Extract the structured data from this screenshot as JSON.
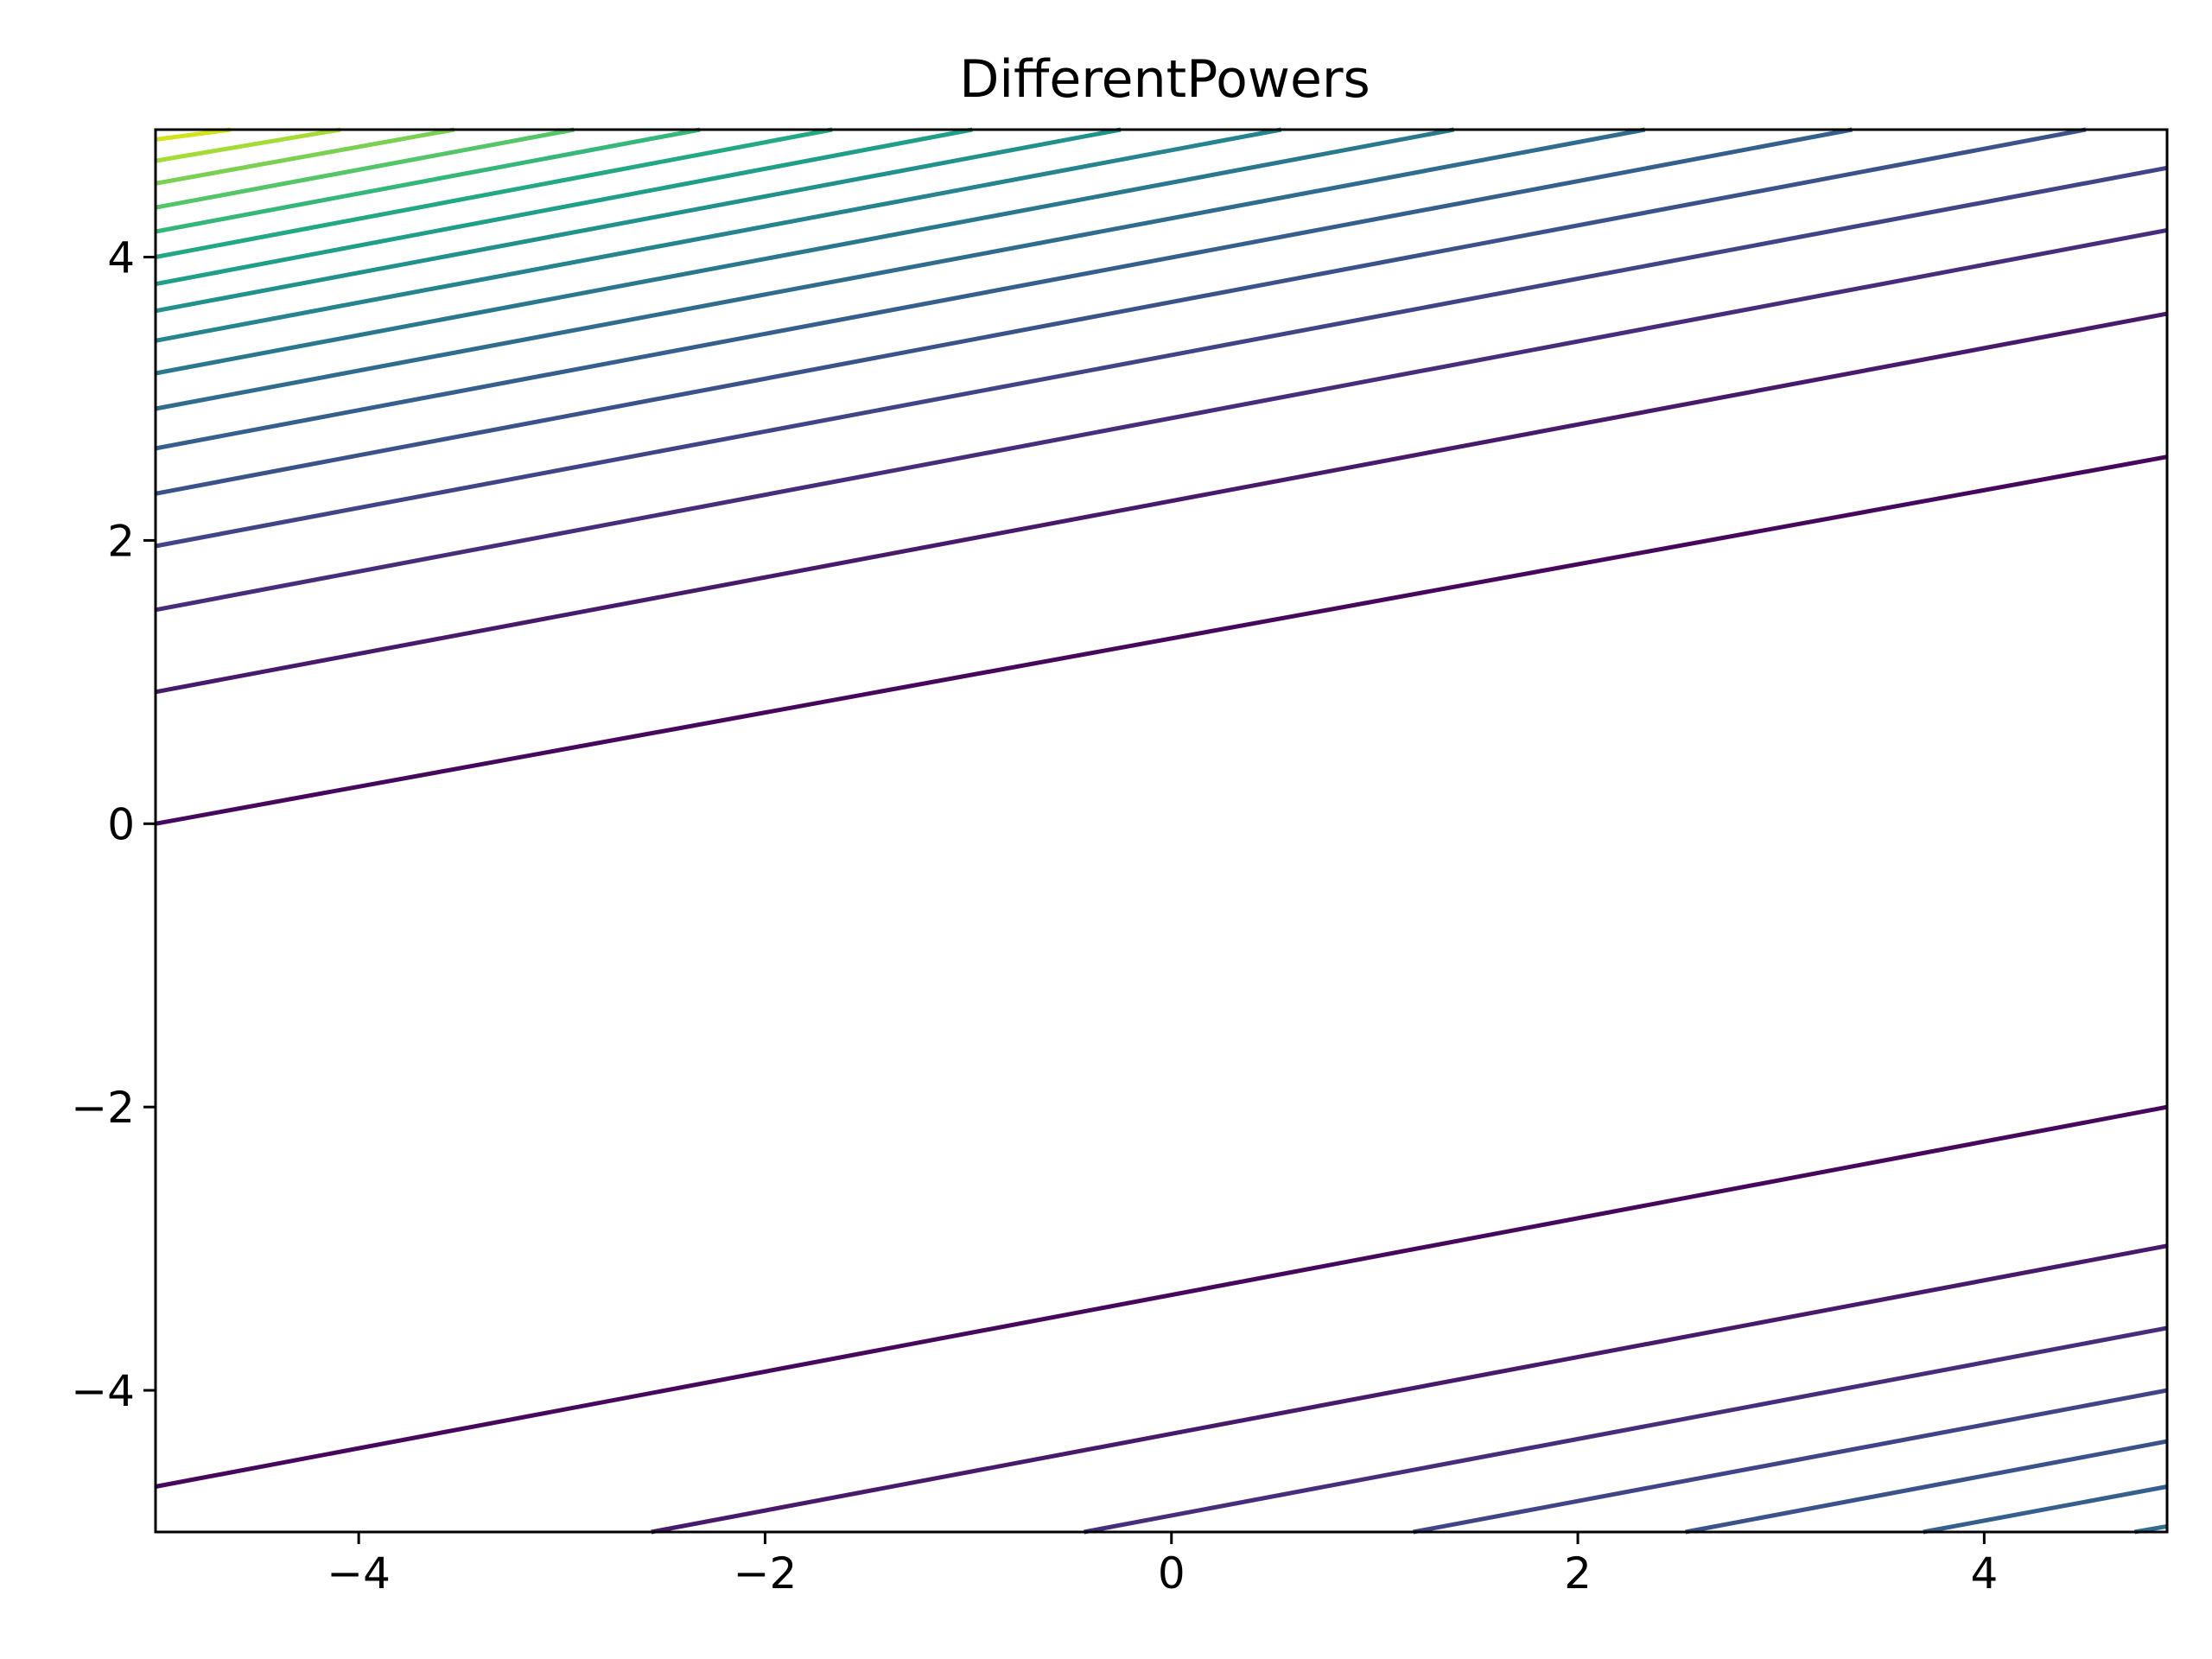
{
  "chart_data": {
    "type": "contour",
    "title": "DifferentPowers",
    "xlabel": "",
    "ylabel": "",
    "xlim": [
      -5,
      4.9
    ],
    "ylim": [
      -5,
      4.9
    ],
    "x_ticks": [
      -4,
      -2,
      0,
      2,
      4
    ],
    "y_ticks": [
      -4,
      -2,
      0,
      2,
      4
    ],
    "x_tick_labels": [
      "−4",
      "−2",
      "0",
      "2",
      "4"
    ],
    "y_tick_labels": [
      "−4",
      "−2",
      "0",
      "2",
      "4"
    ],
    "grid": false,
    "legend": "none",
    "colormap": "viridis",
    "contour_lines": [
      {
        "points": [
          [
            -5,
            0.0
          ],
          [
            4.9,
            2.59
          ]
        ],
        "color": "#46085c"
      },
      {
        "points": [
          [
            -5,
            -4.68
          ],
          [
            4.9,
            -2.0
          ]
        ],
        "color": "#46085c"
      },
      {
        "points": [
          [
            -5,
            0.93
          ],
          [
            4.9,
            3.6
          ]
        ],
        "color": "#481a6c"
      },
      {
        "points": [
          [
            -2.56,
            -5
          ],
          [
            4.9,
            -2.98
          ]
        ],
        "color": "#481a6c"
      },
      {
        "points": [
          [
            -5,
            1.51
          ],
          [
            4.9,
            4.19
          ]
        ],
        "color": "#472d7b"
      },
      {
        "points": [
          [
            -0.43,
            -5
          ],
          [
            4.9,
            -3.56
          ]
        ],
        "color": "#472d7b"
      },
      {
        "points": [
          [
            -5,
            1.96
          ],
          [
            4.9,
            4.63
          ]
        ],
        "color": "#414487"
      },
      {
        "points": [
          [
            1.19,
            -5
          ],
          [
            4.9,
            -4.0
          ]
        ],
        "color": "#414487"
      },
      {
        "points": [
          [
            -5,
            2.33
          ],
          [
            4.5,
            4.9
          ]
        ],
        "color": "#3b528b"
      },
      {
        "points": [
          [
            2.53,
            -5
          ],
          [
            4.9,
            -4.36
          ]
        ],
        "color": "#3b528b"
      },
      {
        "points": [
          [
            -5,
            2.65
          ],
          [
            3.35,
            4.9
          ]
        ],
        "color": "#355f8d"
      },
      {
        "points": [
          [
            3.7,
            -5
          ],
          [
            4.9,
            -4.68
          ]
        ],
        "color": "#355f8d"
      },
      {
        "points": [
          [
            -5,
            2.93
          ],
          [
            2.33,
            4.9
          ]
        ],
        "color": "#2f6c8e"
      },
      {
        "points": [
          [
            4.74,
            -5
          ],
          [
            4.9,
            -4.96
          ]
        ],
        "color": "#2f6c8e"
      },
      {
        "points": [
          [
            -5,
            3.18
          ],
          [
            1.39,
            4.9
          ]
        ],
        "color": "#2a788e"
      },
      {
        "points": [
          [
            -5,
            3.41
          ],
          [
            0.54,
            4.9
          ]
        ],
        "color": "#25848e"
      },
      {
        "points": [
          [
            -5,
            3.62
          ],
          [
            -0.25,
            4.9
          ]
        ],
        "color": "#21918c"
      },
      {
        "points": [
          [
            -5,
            3.81
          ],
          [
            -0.98,
            4.9
          ]
        ],
        "color": "#1f9e89"
      },
      {
        "points": [
          [
            -5,
            4.0
          ],
          [
            -1.67,
            4.9
          ]
        ],
        "color": "#22a884"
      },
      {
        "points": [
          [
            -5,
            4.18
          ],
          [
            -2.32,
            4.9
          ]
        ],
        "color": "#35b779"
      },
      {
        "points": [
          [
            -5,
            4.35
          ],
          [
            -2.94,
            4.9
          ]
        ],
        "color": "#54c568"
      },
      {
        "points": [
          [
            -5,
            4.52
          ],
          [
            -3.53,
            4.9
          ]
        ],
        "color": "#7ad151"
      },
      {
        "points": [
          [
            -5,
            4.68
          ],
          [
            -4.09,
            4.9
          ]
        ],
        "color": "#a5db36"
      },
      {
        "points": [
          [
            -5,
            4.83
          ],
          [
            -4.63,
            4.9
          ]
        ],
        "color": "#d2e21b"
      }
    ]
  }
}
